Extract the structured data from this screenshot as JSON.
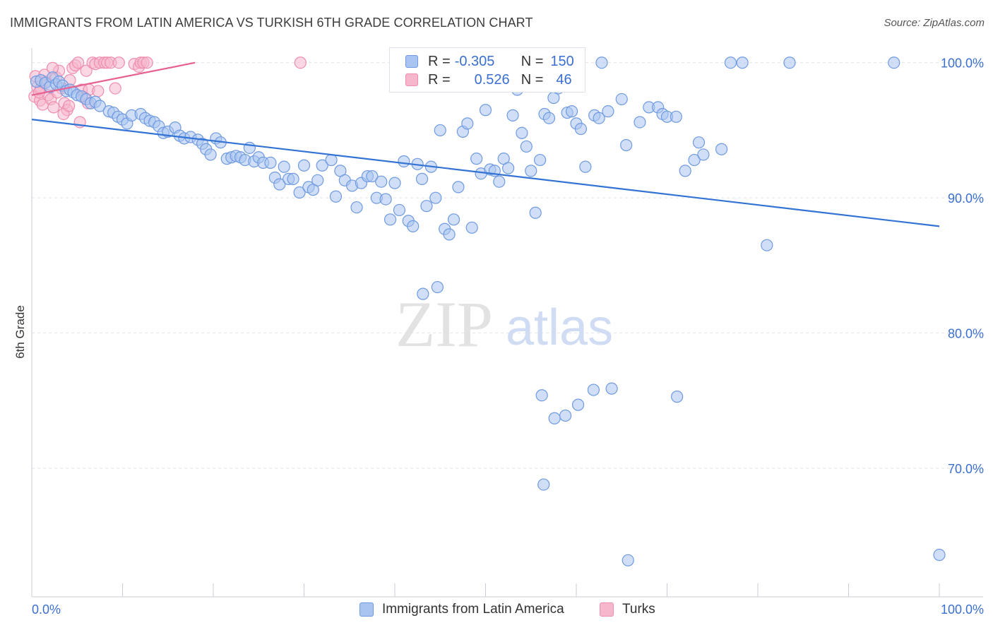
{
  "header": {
    "title": "IMMIGRANTS FROM LATIN AMERICA VS TURKISH 6TH GRADE CORRELATION CHART",
    "source": "Source: ZipAtlas.com"
  },
  "watermark": {
    "zip": "ZIP",
    "atlas": "atlas"
  },
  "legend": {
    "r_label": "R =",
    "n_label": "N =",
    "rows": [
      {
        "r_value": "-0.305",
        "n_value": "150",
        "color": "#7aa7ee"
      },
      {
        "r_value": "0.526",
        "n_value": "46",
        "color": "#f58fb1"
      }
    ]
  },
  "colors": {
    "blue_fill": "#a9c4f0",
    "blue_stroke": "#6f9ae0",
    "blue_line": "#3373d4",
    "pink_fill": "#f6b7cc",
    "pink_stroke": "#ee8db0",
    "pink_line": "#e8608f",
    "tick_text": "#3a6fd0",
    "grid": "#dfe3ea"
  },
  "chart_data": {
    "type": "scatter",
    "title": "IMMIGRANTS FROM LATIN AMERICA VS TURKISH 6TH GRADE CORRELATION CHART",
    "xlabel": "",
    "ylabel": "6th Grade",
    "xlim": [
      0,
      100
    ],
    "ylim": [
      60.5,
      101.5
    ],
    "x_tick_labels": [
      "0.0%",
      "100.0%"
    ],
    "y_ticks": [
      70,
      80,
      90,
      100
    ],
    "y_tick_labels": [
      "70.0%",
      "80.0%",
      "90.0%",
      "100.0%"
    ],
    "grid": "horizontal",
    "series": [
      {
        "name": "Immigrants from Latin America",
        "r": -0.305,
        "n": 150,
        "trend": {
          "x0": 0,
          "y0": 95.8,
          "x1": 100,
          "y1": 87.9
        },
        "points": [
          [
            0.5,
            98.6
          ],
          [
            1.0,
            98.7
          ],
          [
            1.5,
            98.5
          ],
          [
            2.0,
            98.2
          ],
          [
            2.3,
            98.9
          ],
          [
            2.7,
            98.4
          ],
          [
            3.0,
            98.6
          ],
          [
            3.4,
            98.3
          ],
          [
            3.8,
            97.9
          ],
          [
            4.2,
            98.0
          ],
          [
            4.6,
            97.8
          ],
          [
            5.0,
            97.6
          ],
          [
            5.5,
            97.5
          ],
          [
            6.0,
            97.3
          ],
          [
            6.5,
            97.0
          ],
          [
            7.0,
            97.1
          ],
          [
            7.5,
            96.8
          ],
          [
            8.5,
            96.4
          ],
          [
            9.0,
            96.3
          ],
          [
            9.5,
            96.0
          ],
          [
            10.0,
            95.8
          ],
          [
            10.5,
            95.5
          ],
          [
            11.0,
            96.1
          ],
          [
            12.0,
            96.2
          ],
          [
            12.5,
            95.9
          ],
          [
            13.0,
            95.7
          ],
          [
            13.5,
            95.6
          ],
          [
            14.0,
            95.3
          ],
          [
            14.5,
            94.8
          ],
          [
            15.0,
            94.9
          ],
          [
            15.8,
            95.2
          ],
          [
            16.3,
            94.6
          ],
          [
            16.8,
            94.4
          ],
          [
            17.5,
            94.5
          ],
          [
            18.3,
            94.3
          ],
          [
            18.8,
            94.0
          ],
          [
            19.2,
            93.6
          ],
          [
            19.7,
            93.2
          ],
          [
            20.3,
            94.4
          ],
          [
            20.8,
            94.1
          ],
          [
            21.5,
            92.9
          ],
          [
            22.0,
            93.0
          ],
          [
            22.5,
            93.1
          ],
          [
            23.0,
            93.0
          ],
          [
            23.5,
            92.8
          ],
          [
            24.0,
            93.7
          ],
          [
            24.5,
            92.7
          ],
          [
            25.0,
            93.0
          ],
          [
            25.5,
            92.6
          ],
          [
            26.3,
            92.6
          ],
          [
            26.8,
            91.5
          ],
          [
            27.3,
            91.0
          ],
          [
            27.8,
            92.3
          ],
          [
            28.3,
            91.4
          ],
          [
            28.8,
            91.4
          ],
          [
            29.5,
            90.4
          ],
          [
            30.0,
            92.4
          ],
          [
            30.5,
            90.8
          ],
          [
            31.0,
            90.6
          ],
          [
            31.5,
            91.3
          ],
          [
            32.0,
            92.4
          ],
          [
            33.0,
            92.8
          ],
          [
            33.5,
            90.1
          ],
          [
            34.0,
            92.0
          ],
          [
            34.5,
            91.3
          ],
          [
            35.3,
            90.9
          ],
          [
            35.8,
            89.3
          ],
          [
            36.3,
            91.1
          ],
          [
            37.0,
            91.6
          ],
          [
            37.5,
            91.6
          ],
          [
            38.0,
            90.0
          ],
          [
            38.5,
            91.2
          ],
          [
            39.0,
            89.9
          ],
          [
            39.5,
            88.4
          ],
          [
            40.0,
            91.1
          ],
          [
            40.5,
            89.1
          ],
          [
            41.0,
            92.7
          ],
          [
            41.5,
            88.3
          ],
          [
            42.0,
            87.9
          ],
          [
            42.5,
            92.5
          ],
          [
            43.0,
            91.4
          ],
          [
            43.5,
            89.4
          ],
          [
            44.0,
            92.3
          ],
          [
            44.5,
            90.0
          ],
          [
            45.0,
            95.0
          ],
          [
            45.5,
            87.7
          ],
          [
            46.0,
            87.3
          ],
          [
            46.5,
            88.4
          ],
          [
            47.0,
            90.8
          ],
          [
            47.5,
            94.9
          ],
          [
            48.0,
            95.5
          ],
          [
            48.5,
            87.8
          ],
          [
            49.0,
            92.9
          ],
          [
            49.5,
            91.8
          ],
          [
            50.0,
            96.5
          ],
          [
            50.5,
            92.1
          ],
          [
            51.0,
            92.0
          ],
          [
            51.5,
            91.2
          ],
          [
            52.0,
            92.9
          ],
          [
            52.5,
            92.2
          ],
          [
            53.0,
            96.1
          ],
          [
            53.5,
            98.0
          ],
          [
            54.0,
            94.8
          ],
          [
            54.5,
            93.8
          ],
          [
            55.0,
            92.0
          ],
          [
            55.5,
            88.9
          ],
          [
            56.0,
            92.8
          ],
          [
            56.5,
            96.2
          ],
          [
            57.0,
            95.9
          ],
          [
            57.5,
            97.4
          ],
          [
            58.0,
            98.1
          ],
          [
            59.0,
            96.3
          ],
          [
            59.5,
            96.4
          ],
          [
            60.0,
            95.5
          ],
          [
            60.5,
            95.1
          ],
          [
            61.0,
            92.3
          ],
          [
            62.0,
            96.1
          ],
          [
            62.5,
            95.9
          ],
          [
            63.5,
            96.4
          ],
          [
            65.0,
            97.3
          ],
          [
            65.5,
            93.9
          ],
          [
            67.0,
            95.6
          ],
          [
            68.0,
            96.7
          ],
          [
            69.0,
            96.7
          ],
          [
            69.5,
            96.2
          ],
          [
            70.0,
            96.0
          ],
          [
            71.0,
            96.0
          ],
          [
            72.0,
            92.0
          ],
          [
            73.0,
            92.8
          ],
          [
            73.5,
            94.1
          ],
          [
            74.0,
            93.2
          ],
          [
            76.0,
            93.6
          ],
          [
            81.0,
            86.5
          ],
          [
            60.2,
            74.7
          ],
          [
            57.6,
            73.7
          ],
          [
            56.2,
            75.4
          ],
          [
            58.8,
            73.9
          ],
          [
            61.9,
            75.8
          ],
          [
            71.1,
            75.3
          ],
          [
            63.9,
            75.9
          ],
          [
            56.4,
            68.8
          ],
          [
            65.7,
            63.2
          ],
          [
            100.0,
            63.6
          ],
          [
            62.8,
            100.0
          ],
          [
            77.0,
            100.0
          ],
          [
            78.3,
            100.0
          ],
          [
            83.5,
            100.0
          ],
          [
            95.0,
            100.0
          ],
          [
            44.7,
            83.4
          ],
          [
            43.1,
            82.9
          ]
        ]
      },
      {
        "name": "Turks",
        "r": 0.526,
        "n": 46,
        "trend": {
          "x0": 0,
          "y0": 97.6,
          "x1": 18,
          "y1": 100.0
        },
        "points": [
          [
            0.3,
            97.5
          ],
          [
            0.6,
            98.2
          ],
          [
            0.9,
            97.2
          ],
          [
            1.2,
            96.9
          ],
          [
            1.5,
            98.6
          ],
          [
            1.8,
            97.6
          ],
          [
            2.1,
            97.3
          ],
          [
            2.4,
            96.7
          ],
          [
            2.7,
            98.9
          ],
          [
            3.0,
            99.4
          ],
          [
            3.3,
            98.1
          ],
          [
            3.6,
            97.0
          ],
          [
            3.9,
            96.5
          ],
          [
            4.2,
            98.7
          ],
          [
            4.5,
            99.6
          ],
          [
            4.8,
            99.8
          ],
          [
            5.1,
            100.0
          ],
          [
            5.5,
            98.0
          ],
          [
            6.0,
            99.4
          ],
          [
            6.3,
            98.0
          ],
          [
            6.7,
            100.0
          ],
          [
            7.0,
            99.9
          ],
          [
            7.5,
            100.0
          ],
          [
            8.0,
            100.0
          ],
          [
            8.3,
            100.0
          ],
          [
            8.7,
            100.0
          ],
          [
            9.2,
            98.1
          ],
          [
            9.6,
            100.0
          ],
          [
            11.3,
            99.9
          ],
          [
            11.8,
            99.7
          ],
          [
            12.0,
            100.0
          ],
          [
            12.3,
            100.0
          ],
          [
            0.4,
            99.0
          ],
          [
            1.0,
            98.1
          ],
          [
            1.4,
            99.1
          ],
          [
            2.3,
            99.6
          ],
          [
            2.8,
            97.8
          ],
          [
            3.5,
            96.2
          ],
          [
            4.1,
            96.8
          ],
          [
            5.3,
            95.6
          ],
          [
            5.8,
            97.4
          ],
          [
            6.2,
            97.0
          ],
          [
            7.3,
            97.9
          ],
          [
            12.7,
            100.0
          ],
          [
            29.6,
            100.0
          ],
          [
            0.8,
            97.8
          ]
        ]
      }
    ]
  },
  "bottom_legend": {
    "series1": "Immigrants from Latin America",
    "series2": "Turks"
  }
}
